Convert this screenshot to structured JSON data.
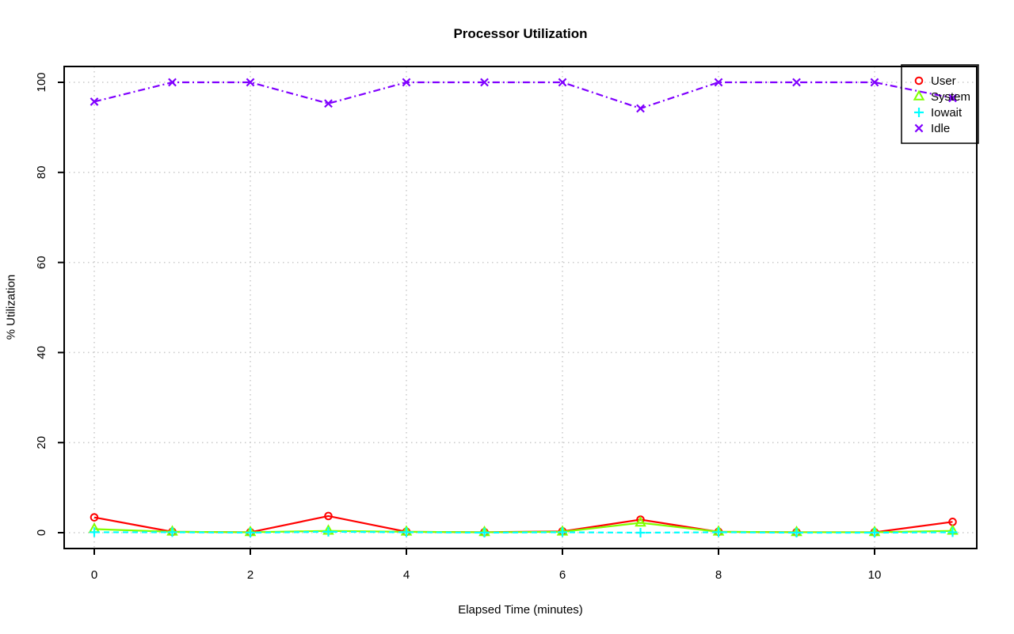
{
  "chart_data": {
    "type": "line",
    "title": "Processor Utilization",
    "xlabel": "Elapsed Time (minutes)",
    "ylabel": "% Utilization",
    "x": [
      0,
      1,
      2,
      3,
      4,
      5,
      6,
      7,
      8,
      9,
      10,
      11
    ],
    "xlim": [
      0,
      11
    ],
    "ylim": [
      0,
      100
    ],
    "grid": "dotted-lightgray-on-ticks",
    "axes": {
      "xticks": [
        0,
        2,
        4,
        6,
        8,
        10
      ],
      "xtick_labels": [
        "0",
        "2",
        "4",
        "6",
        "8",
        "10"
      ],
      "yticks": [
        0,
        20,
        40,
        60,
        80,
        100
      ],
      "ytick_labels": [
        "0",
        "20",
        "40",
        "60",
        "80",
        "100"
      ]
    },
    "series": [
      {
        "name": "User",
        "color": "#FF0000",
        "marker": "circle",
        "line_style": "solid",
        "values": [
          3.4,
          0.2,
          0.1,
          3.7,
          0.2,
          0.1,
          0.3,
          2.9,
          0.2,
          0.1,
          0.1,
          2.4
        ]
      },
      {
        "name": "System",
        "color": "#80FF00",
        "marker": "triangle",
        "line_style": "solid",
        "values": [
          0.8,
          0.2,
          0.1,
          0.4,
          0.2,
          0.1,
          0.2,
          2.2,
          0.2,
          0.1,
          0.1,
          0.4
        ]
      },
      {
        "name": "Iowait",
        "color": "#00FFFF",
        "marker": "plus",
        "line_style": "dashed",
        "values": [
          0.1,
          0.1,
          0.0,
          0.2,
          0.1,
          0.0,
          0.1,
          0.0,
          0.1,
          0.0,
          0.0,
          0.1
        ]
      },
      {
        "name": "Idle",
        "color": "#8000FF",
        "marker": "x",
        "line_style": "dashdot",
        "values": [
          95.7,
          100,
          100,
          95.3,
          100,
          100,
          100,
          94.2,
          100,
          100,
          100,
          96.5
        ]
      }
    ],
    "legend": {
      "position": "topright",
      "entries": [
        "User",
        "System",
        "Iowait",
        "Idle"
      ]
    }
  }
}
